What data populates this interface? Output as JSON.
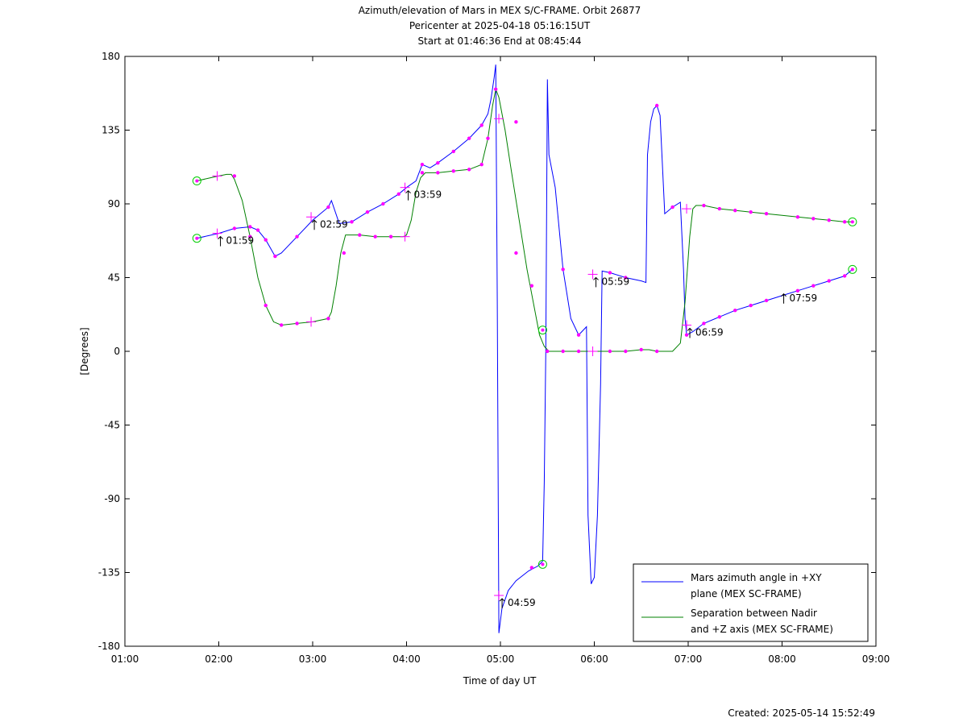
{
  "chart_data": {
    "type": "line",
    "title_lines": [
      "Azimuth/elevation of Mars in MEX S/C-FRAME.  Orbit 26877",
      "Pericenter at 2025-04-18 05:16:15UT",
      "Start at 01:46:36 End at 08:45:44"
    ],
    "xlabel": "Time of day UT",
    "ylabel": "[Degrees]",
    "xlim": [
      "01:00",
      "09:00"
    ],
    "ylim": [
      -180,
      180
    ],
    "x_ticks": [
      "01:00",
      "02:00",
      "03:00",
      "04:00",
      "05:00",
      "06:00",
      "07:00",
      "08:00",
      "09:00"
    ],
    "y_ticks": [
      180,
      135,
      90,
      45,
      0,
      -45,
      -90,
      -135,
      -180
    ],
    "grid": false,
    "legend_position": "bottom-right",
    "series": [
      {
        "name": "Mars azimuth angle in +XY plane (MEX SC-FRAME)",
        "name_lines": [
          "Mars azimuth angle in +XY",
          "plane (MEX SC-FRAME)"
        ],
        "color": "#0000ff",
        "points": [
          [
            "01:46",
            69
          ],
          [
            "02:00",
            72
          ],
          [
            "02:10",
            75
          ],
          [
            "02:20",
            76
          ],
          [
            "02:25",
            74
          ],
          [
            "02:30",
            68
          ],
          [
            "02:36",
            58
          ],
          [
            "02:40",
            60
          ],
          [
            "02:50",
            70
          ],
          [
            "03:00",
            80
          ],
          [
            "03:10",
            88
          ],
          [
            "03:12",
            92
          ],
          [
            "03:17",
            78
          ],
          [
            "03:25",
            79
          ],
          [
            "03:35",
            85
          ],
          [
            "03:45",
            90
          ],
          [
            "03:55",
            96
          ],
          [
            "04:00",
            100
          ],
          [
            "04:06",
            104
          ],
          [
            "04:10",
            114
          ],
          [
            "04:15",
            112
          ],
          [
            "04:20",
            115
          ],
          [
            "04:30",
            122
          ],
          [
            "04:40",
            130
          ],
          [
            "04:48",
            138
          ],
          [
            "04:52",
            145
          ],
          [
            "04:54",
            154
          ],
          [
            "04:56",
            167
          ],
          [
            "04:57",
            175
          ],
          [
            "04:58",
            30
          ],
          [
            "04:59",
            -172
          ],
          [
            "05:01",
            -157
          ],
          [
            "05:05",
            -146
          ],
          [
            "05:10",
            -140
          ],
          [
            "05:18",
            -134
          ],
          [
            "05:24",
            -131
          ],
          [
            "05:27",
            -128
          ],
          [
            "05:28",
            -80
          ],
          [
            "05:29",
            0
          ],
          [
            "05:30",
            166
          ],
          [
            "05:31",
            120
          ],
          [
            "05:35",
            100
          ],
          [
            "05:40",
            50
          ],
          [
            "05:45",
            20
          ],
          [
            "05:50",
            10
          ],
          [
            "05:52",
            12
          ],
          [
            "05:55",
            15
          ],
          [
            "05:56",
            -100
          ],
          [
            "05:58",
            -142
          ],
          [
            "06:00",
            -138
          ],
          [
            "06:02",
            -100
          ],
          [
            "06:04",
            -20
          ],
          [
            "06:05",
            49
          ],
          [
            "06:10",
            48
          ],
          [
            "06:20",
            45
          ],
          [
            "06:30",
            43
          ],
          [
            "06:33",
            42
          ],
          [
            "06:34",
            120
          ],
          [
            "06:36",
            140
          ],
          [
            "06:38",
            148
          ],
          [
            "06:40",
            150
          ],
          [
            "06:42",
            144
          ],
          [
            "06:45",
            84
          ],
          [
            "06:50",
            88
          ],
          [
            "06:55",
            91
          ],
          [
            "06:57",
            50
          ],
          [
            "06:58",
            20
          ],
          [
            "06:59",
            10
          ],
          [
            "07:03",
            12
          ],
          [
            "07:10",
            17
          ],
          [
            "07:20",
            21
          ],
          [
            "07:30",
            25
          ],
          [
            "07:40",
            28
          ],
          [
            "07:50",
            31
          ],
          [
            "08:00",
            34
          ],
          [
            "08:10",
            37
          ],
          [
            "08:20",
            40
          ],
          [
            "08:30",
            43
          ],
          [
            "08:40",
            46
          ],
          [
            "08:45",
            50
          ]
        ]
      },
      {
        "name": "Separation between Nadir and +Z axis (MEX SC-FRAME)",
        "name_lines": [
          "Separation between Nadir",
          "and +Z axis (MEX SC-FRAME)"
        ],
        "color": "#008000",
        "points": [
          [
            "01:46",
            104
          ],
          [
            "01:55",
            106
          ],
          [
            "02:00",
            107
          ],
          [
            "02:05",
            108
          ],
          [
            "02:08",
            108
          ],
          [
            "02:10",
            105
          ],
          [
            "02:15",
            92
          ],
          [
            "02:20",
            70
          ],
          [
            "02:25",
            45
          ],
          [
            "02:30",
            28
          ],
          [
            "02:35",
            18
          ],
          [
            "02:40",
            16
          ],
          [
            "02:50",
            17
          ],
          [
            "03:00",
            18
          ],
          [
            "03:10",
            20
          ],
          [
            "03:12",
            24
          ],
          [
            "03:15",
            40
          ],
          [
            "03:18",
            60
          ],
          [
            "03:21",
            71
          ],
          [
            "03:30",
            71
          ],
          [
            "03:40",
            70
          ],
          [
            "03:50",
            70
          ],
          [
            "03:58",
            70
          ],
          [
            "04:00",
            71
          ],
          [
            "04:03",
            80
          ],
          [
            "04:06",
            97
          ],
          [
            "04:09",
            106
          ],
          [
            "04:12",
            109
          ],
          [
            "04:20",
            109
          ],
          [
            "04:30",
            110
          ],
          [
            "04:40",
            111
          ],
          [
            "04:48",
            114
          ],
          [
            "04:52",
            130
          ],
          [
            "04:55",
            150
          ],
          [
            "04:57",
            160
          ],
          [
            "04:59",
            155
          ],
          [
            "05:03",
            135
          ],
          [
            "05:07",
            110
          ],
          [
            "05:12",
            80
          ],
          [
            "05:17",
            50
          ],
          [
            "05:22",
            25
          ],
          [
            "05:25",
            10
          ],
          [
            "05:28",
            3
          ],
          [
            "05:31",
            0
          ],
          [
            "05:40",
            0
          ],
          [
            "05:50",
            0
          ],
          [
            "06:00",
            0
          ],
          [
            "06:10",
            0
          ],
          [
            "06:20",
            0
          ],
          [
            "06:30",
            1
          ],
          [
            "06:35",
            1
          ],
          [
            "06:40",
            0
          ],
          [
            "06:50",
            0
          ],
          [
            "06:55",
            5
          ],
          [
            "06:58",
            30
          ],
          [
            "07:01",
            70
          ],
          [
            "07:03",
            87
          ],
          [
            "07:05",
            89
          ],
          [
            "07:10",
            89
          ],
          [
            "07:20",
            87
          ],
          [
            "07:30",
            86
          ],
          [
            "07:40",
            85
          ],
          [
            "07:50",
            84
          ],
          [
            "08:00",
            83
          ],
          [
            "08:10",
            82
          ],
          [
            "08:20",
            81
          ],
          [
            "08:30",
            80
          ],
          [
            "08:40",
            79
          ],
          [
            "08:45",
            79
          ]
        ]
      }
    ],
    "markers": {
      "dot_color": "#ff00ff",
      "circle_color": "#00cc00",
      "blue_dots": [
        [
          "02:10",
          75
        ],
        [
          "02:20",
          76
        ],
        [
          "02:25",
          74
        ],
        [
          "02:30",
          68
        ],
        [
          "02:36",
          58
        ],
        [
          "02:50",
          70
        ],
        [
          "03:10",
          88
        ],
        [
          "03:25",
          79
        ],
        [
          "03:35",
          85
        ],
        [
          "03:45",
          90
        ],
        [
          "03:55",
          96
        ],
        [
          "04:10",
          114
        ],
        [
          "04:20",
          115
        ],
        [
          "04:30",
          122
        ],
        [
          "04:40",
          130
        ],
        [
          "04:48",
          138
        ],
        [
          "05:10",
          140
        ],
        [
          "05:20",
          -132
        ],
        [
          "05:40",
          50
        ],
        [
          "05:50",
          10
        ],
        [
          "06:10",
          48
        ],
        [
          "06:20",
          45
        ],
        [
          "06:40",
          150
        ],
        [
          "06:50",
          88
        ],
        [
          "06:59",
          10
        ],
        [
          "07:10",
          17
        ],
        [
          "07:20",
          21
        ],
        [
          "07:30",
          25
        ],
        [
          "07:40",
          28
        ],
        [
          "07:50",
          31
        ],
        [
          "08:10",
          37
        ],
        [
          "08:20",
          40
        ],
        [
          "08:30",
          43
        ],
        [
          "08:40",
          46
        ]
      ],
      "green_dots": [
        [
          "02:10",
          107
        ],
        [
          "02:20",
          70
        ],
        [
          "02:30",
          28
        ],
        [
          "02:40",
          16
        ],
        [
          "02:50",
          17
        ],
        [
          "03:10",
          20
        ],
        [
          "03:20",
          60
        ],
        [
          "03:30",
          71
        ],
        [
          "03:40",
          70
        ],
        [
          "03:50",
          70
        ],
        [
          "04:10",
          109
        ],
        [
          "04:20",
          109
        ],
        [
          "04:30",
          110
        ],
        [
          "04:40",
          111
        ],
        [
          "04:48",
          114
        ],
        [
          "04:52",
          130
        ],
        [
          "04:57",
          160
        ],
        [
          "05:10",
          60
        ],
        [
          "05:20",
          40
        ],
        [
          "05:30",
          0
        ],
        [
          "05:40",
          0
        ],
        [
          "05:50",
          0
        ],
        [
          "06:10",
          0
        ],
        [
          "06:20",
          0
        ],
        [
          "06:30",
          1
        ],
        [
          "06:40",
          0
        ],
        [
          "07:10",
          89
        ],
        [
          "07:20",
          87
        ],
        [
          "07:30",
          86
        ],
        [
          "07:40",
          85
        ],
        [
          "07:50",
          84
        ],
        [
          "08:10",
          82
        ],
        [
          "08:20",
          81
        ],
        [
          "08:30",
          80
        ],
        [
          "08:40",
          79
        ]
      ],
      "plus_marks": [
        [
          "01:59",
          72
        ],
        [
          "01:59",
          107
        ],
        [
          "02:59",
          82
        ],
        [
          "02:59",
          18
        ],
        [
          "03:59",
          100
        ],
        [
          "03:59",
          70
        ],
        [
          "04:59",
          -149
        ],
        [
          "04:59",
          142
        ],
        [
          "05:59",
          47
        ],
        [
          "05:59",
          0
        ],
        [
          "06:59",
          16
        ],
        [
          "06:59",
          87
        ]
      ],
      "circle_marks": [
        [
          "01:46",
          69
        ],
        [
          "01:46",
          104
        ],
        [
          "05:27",
          -130
        ],
        [
          "05:27",
          13
        ],
        [
          "08:45",
          50
        ],
        [
          "08:45",
          79
        ]
      ]
    },
    "annotations": [
      {
        "label": "01:59",
        "x": "01:59",
        "y": 72
      },
      {
        "label": "02:59",
        "x": "02:59",
        "y": 82
      },
      {
        "label": "03:59",
        "x": "03:59",
        "y": 100
      },
      {
        "label": "04:59",
        "x": "04:59",
        "y": -149
      },
      {
        "label": "05:59",
        "x": "05:59",
        "y": 47
      },
      {
        "label": "06:59",
        "x": "06:59",
        "y": 16
      },
      {
        "label": "07:59",
        "x": "07:59",
        "y": 37
      }
    ]
  },
  "footer": {
    "created": "Created: 2025-05-14 15:52:49"
  }
}
